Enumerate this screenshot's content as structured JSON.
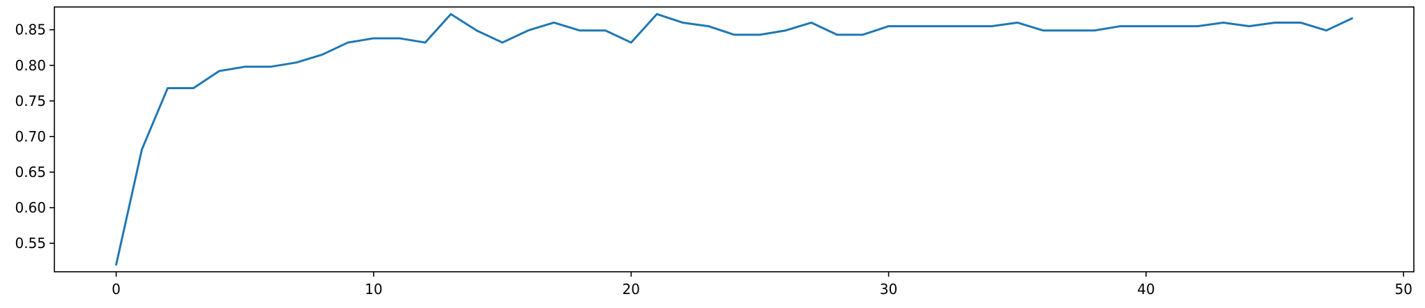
{
  "chart_data": {
    "type": "line",
    "title": "",
    "xlabel": "",
    "ylabel": "",
    "xlim": [
      -2.4,
      50.4
    ],
    "ylim": [
      0.51,
      0.882
    ],
    "xticks": [
      0,
      10,
      20,
      30,
      40,
      50
    ],
    "yticks": [
      0.55,
      0.6,
      0.65,
      0.7,
      0.75,
      0.8,
      0.85
    ],
    "grid": false,
    "series": [
      {
        "color": "#1f77b4",
        "x": [
          0,
          1,
          2,
          3,
          4,
          5,
          6,
          7,
          8,
          9,
          10,
          11,
          12,
          13,
          14,
          15,
          16,
          17,
          18,
          19,
          20,
          21,
          22,
          23,
          24,
          25,
          26,
          27,
          28,
          29,
          30,
          31,
          32,
          33,
          34,
          35,
          36,
          37,
          38,
          39,
          40,
          41,
          42,
          43,
          44,
          45,
          46,
          47,
          48
        ],
        "y": [
          0.52,
          0.682,
          0.768,
          0.768,
          0.792,
          0.798,
          0.798,
          0.804,
          0.815,
          0.832,
          0.838,
          0.838,
          0.832,
          0.872,
          0.849,
          0.832,
          0.849,
          0.86,
          0.849,
          0.849,
          0.832,
          0.872,
          0.86,
          0.855,
          0.843,
          0.843,
          0.849,
          0.86,
          0.843,
          0.843,
          0.855,
          0.855,
          0.855,
          0.855,
          0.855,
          0.86,
          0.849,
          0.849,
          0.849,
          0.855,
          0.855,
          0.855,
          0.855,
          0.86,
          0.855,
          0.86,
          0.86,
          0.849,
          0.866
        ]
      }
    ]
  }
}
